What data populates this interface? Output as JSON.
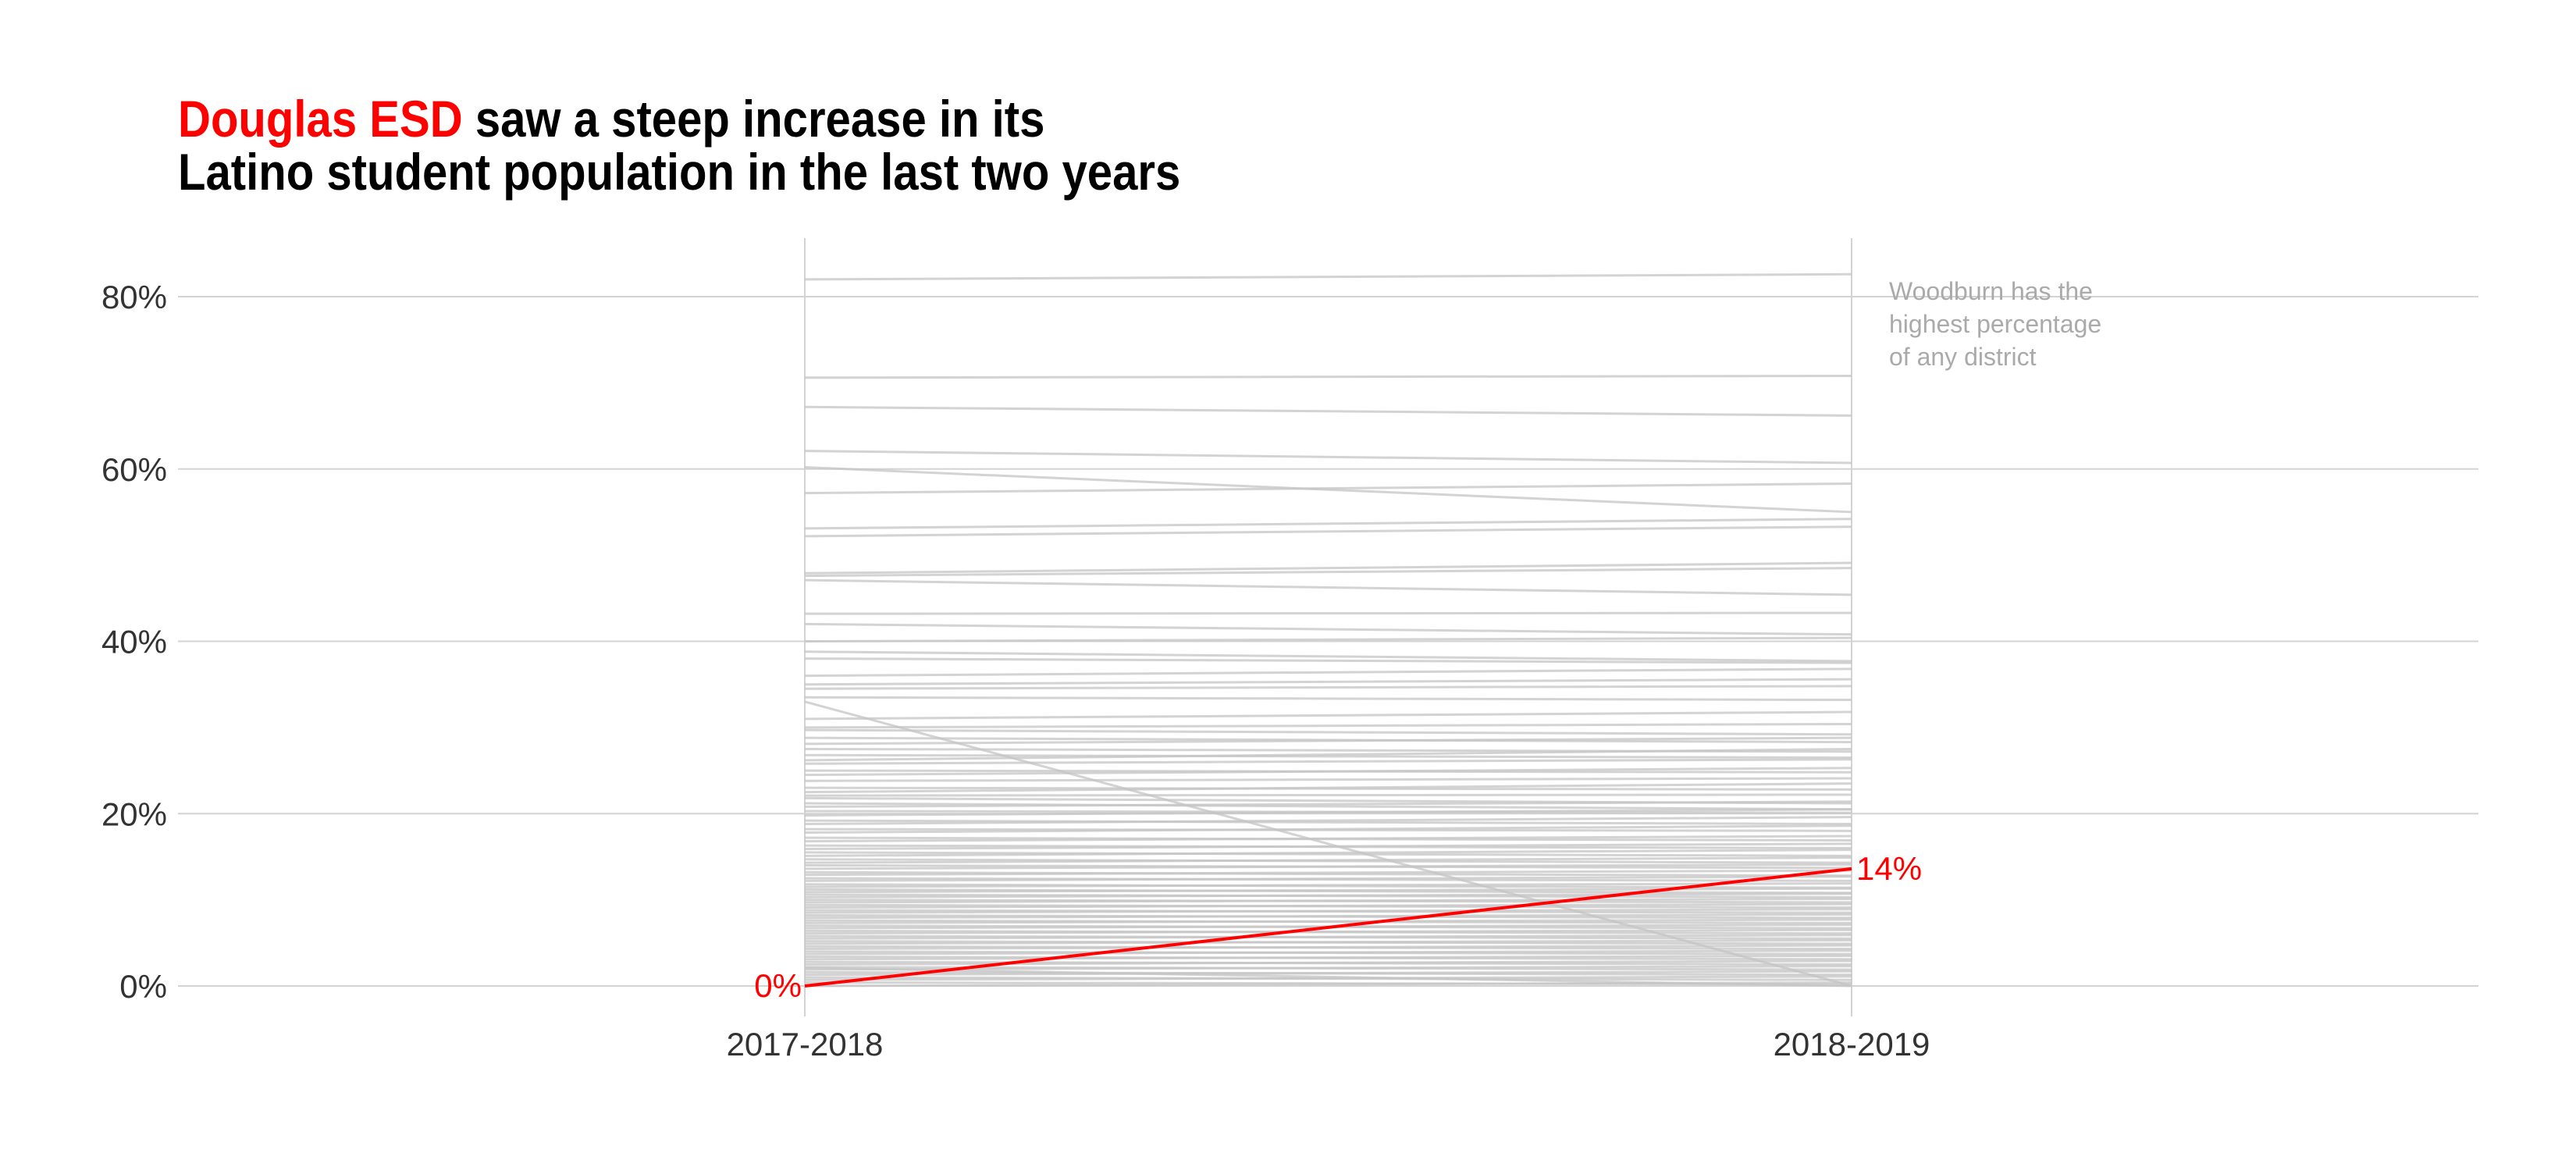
{
  "title": {
    "highlight": "Douglas ESD",
    "line1_rest": " saw a steep increase in its",
    "line2": "Latino student population in the last two years"
  },
  "annotation": {
    "lines": [
      "Woodburn has the",
      "highest percentage",
      "of any district"
    ]
  },
  "colors": {
    "highlight": "#ff0000",
    "background_lines": "#c4c4c4",
    "grid": "#d3d3d3",
    "text": "#333333",
    "annotation": "#aaaaaa"
  },
  "chart_data": {
    "type": "line",
    "x": [
      "2017-2018",
      "2018-2019"
    ],
    "ylim": [
      -0.036,
      0.87
    ],
    "y_ticks": [
      0,
      0.2,
      0.4,
      0.6,
      0.8
    ],
    "y_tick_labels": [
      "0%",
      "20%",
      "40%",
      "60%",
      "80%"
    ],
    "grid": "horizontal",
    "highlight": {
      "name": "Douglas ESD",
      "values": [
        0.0,
        0.136
      ],
      "start_label": "0%",
      "end_label": "14%"
    },
    "background_series": [
      [
        0.82,
        0.826
      ],
      [
        0.706,
        0.708
      ],
      [
        0.672,
        0.662
      ],
      [
        0.621,
        0.607
      ],
      [
        0.602,
        0.55
      ],
      [
        0.572,
        0.583
      ],
      [
        0.531,
        0.542
      ],
      [
        0.522,
        0.533
      ],
      [
        0.479,
        0.491
      ],
      [
        0.476,
        0.485
      ],
      [
        0.471,
        0.454
      ],
      [
        0.432,
        0.433
      ],
      [
        0.42,
        0.408
      ],
      [
        0.4,
        0.404
      ],
      [
        0.388,
        0.377
      ],
      [
        0.38,
        0.375
      ],
      [
        0.36,
        0.368
      ],
      [
        0.35,
        0.356
      ],
      [
        0.345,
        0.348
      ],
      [
        0.335,
        0.332
      ],
      [
        0.33,
        0.0
      ],
      [
        0.31,
        0.318
      ],
      [
        0.3,
        0.304
      ],
      [
        0.297,
        0.292
      ],
      [
        0.288,
        0.283
      ],
      [
        0.281,
        0.288
      ],
      [
        0.275,
        0.272
      ],
      [
        0.268,
        0.265
      ],
      [
        0.262,
        0.275
      ],
      [
        0.258,
        0.263
      ],
      [
        0.25,
        0.248
      ],
      [
        0.245,
        0.253
      ],
      [
        0.238,
        0.241
      ],
      [
        0.23,
        0.228
      ],
      [
        0.225,
        0.235
      ],
      [
        0.221,
        0.222
      ],
      [
        0.218,
        0.212
      ],
      [
        0.212,
        0.205
      ],
      [
        0.208,
        0.214
      ],
      [
        0.203,
        0.201
      ],
      [
        0.198,
        0.205
      ],
      [
        0.192,
        0.188
      ],
      [
        0.188,
        0.196
      ],
      [
        0.182,
        0.18
      ],
      [
        0.178,
        0.186
      ],
      [
        0.172,
        0.169
      ],
      [
        0.168,
        0.174
      ],
      [
        0.163,
        0.16
      ],
      [
        0.159,
        0.165
      ],
      [
        0.155,
        0.151
      ],
      [
        0.151,
        0.158
      ],
      [
        0.147,
        0.143
      ],
      [
        0.143,
        0.149
      ],
      [
        0.14,
        0.137
      ],
      [
        0.136,
        0.141
      ],
      [
        0.132,
        0.128
      ],
      [
        0.129,
        0.134
      ],
      [
        0.125,
        0.122
      ],
      [
        0.122,
        0.127
      ],
      [
        0.118,
        0.114
      ],
      [
        0.115,
        0.119
      ],
      [
        0.112,
        0.108
      ],
      [
        0.109,
        0.113
      ],
      [
        0.106,
        0.103
      ],
      [
        0.103,
        0.107
      ],
      [
        0.1,
        0.097
      ],
      [
        0.097,
        0.101
      ],
      [
        0.094,
        0.091
      ],
      [
        0.091,
        0.095
      ],
      [
        0.088,
        0.085
      ],
      [
        0.085,
        0.089
      ],
      [
        0.082,
        0.079
      ],
      [
        0.079,
        0.083
      ],
      [
        0.076,
        0.073
      ],
      [
        0.073,
        0.077
      ],
      [
        0.07,
        0.067
      ],
      [
        0.067,
        0.071
      ],
      [
        0.064,
        0.061
      ],
      [
        0.061,
        0.065
      ],
      [
        0.058,
        0.055
      ],
      [
        0.055,
        0.059
      ],
      [
        0.052,
        0.049
      ],
      [
        0.049,
        0.053
      ],
      [
        0.046,
        0.043
      ],
      [
        0.043,
        0.047
      ],
      [
        0.04,
        0.037
      ],
      [
        0.037,
        0.041
      ],
      [
        0.034,
        0.031
      ],
      [
        0.031,
        0.035
      ],
      [
        0.028,
        0.025
      ],
      [
        0.025,
        0.029
      ],
      [
        0.022,
        0.019
      ],
      [
        0.019,
        0.023
      ],
      [
        0.016,
        0.013
      ],
      [
        0.013,
        0.017
      ],
      [
        0.01,
        0.007
      ],
      [
        0.007,
        0.011
      ],
      [
        0.004,
        0.002
      ],
      [
        0.0,
        0.004
      ],
      [
        0.021,
        0.0
      ]
    ]
  }
}
